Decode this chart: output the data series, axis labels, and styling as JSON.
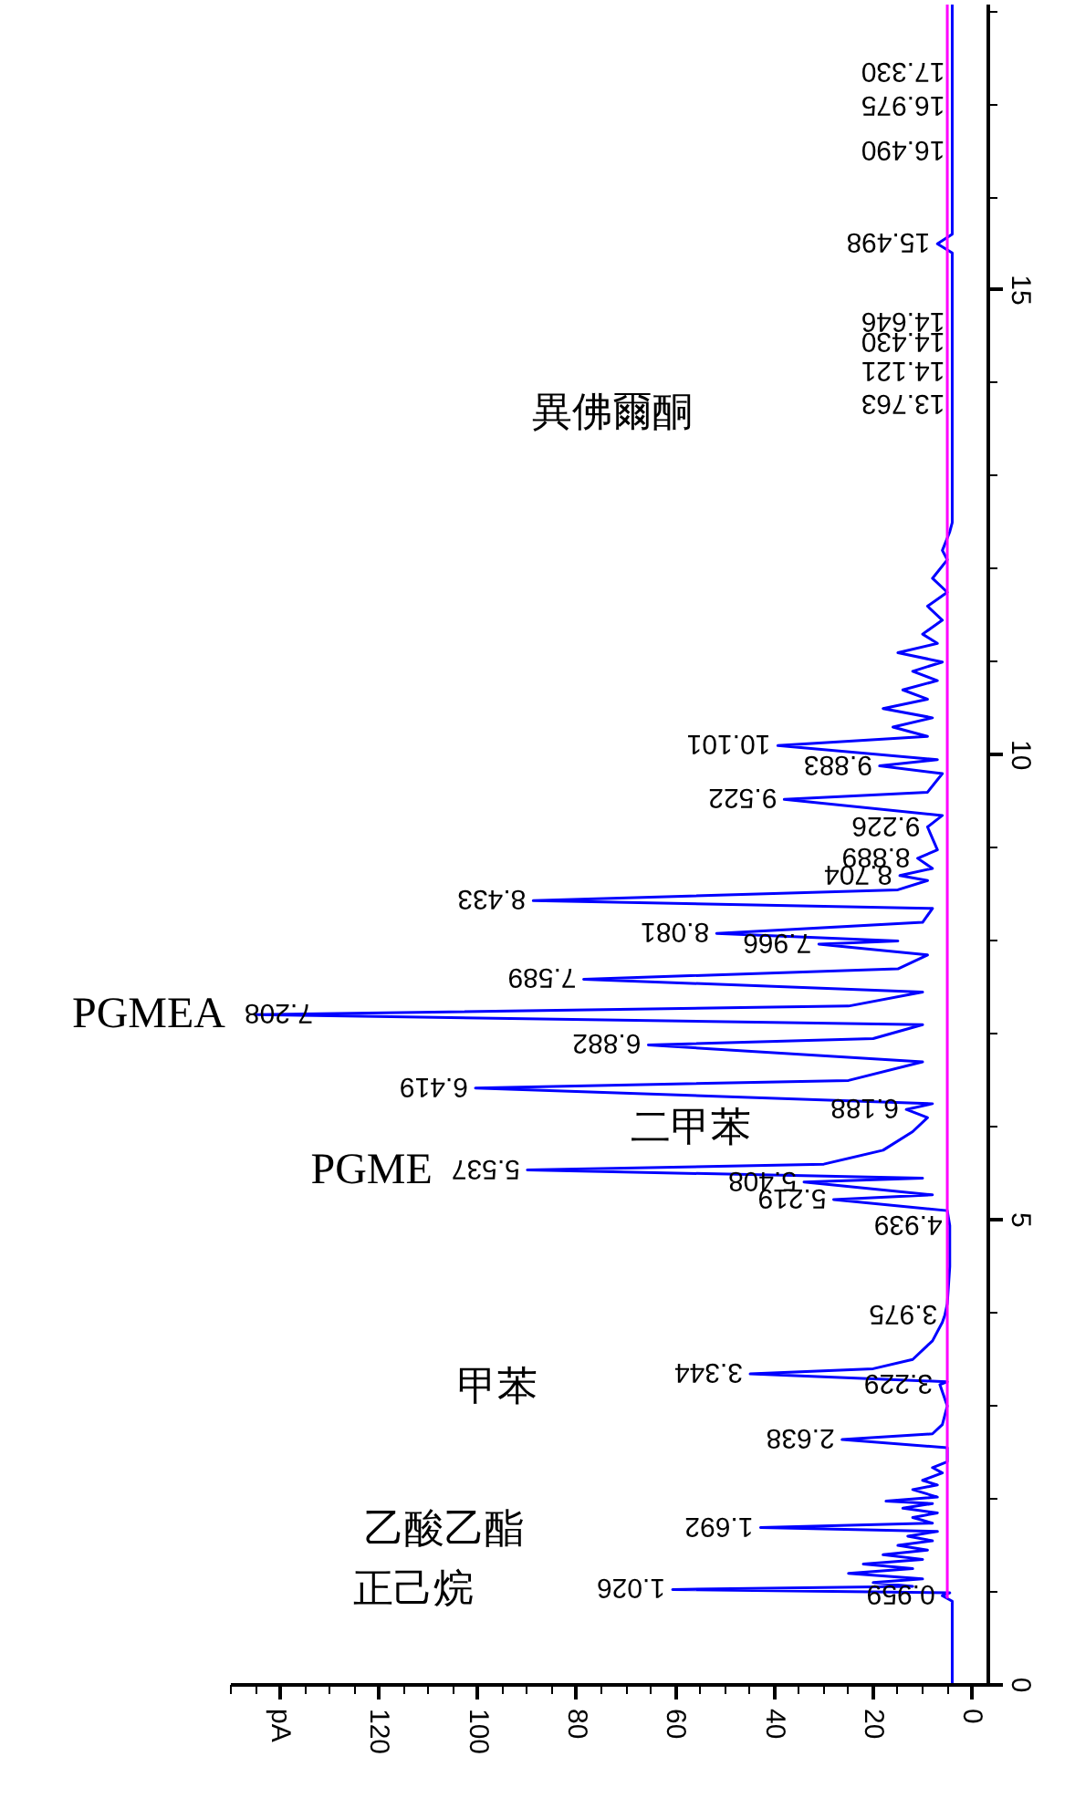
{
  "chart_data": {
    "type": "line",
    "orientation": "horizontal",
    "grid": false,
    "xlim": [
      150,
      -3.3
    ],
    "xticks": [
      0,
      20,
      40,
      60,
      80,
      100,
      120,
      {
        "value": 140,
        "label": "pA"
      }
    ],
    "ylim": [
      0,
      18.07
    ],
    "yticks": [
      0,
      5,
      10,
      15
    ],
    "series": [
      {
        "color": "#0000ff",
        "x": [
          0,
          0.9,
          0.959,
          0.99,
          1.026,
          1.06,
          1.1,
          1.14,
          1.2,
          1.25,
          1.3,
          1.35,
          1.4,
          1.45,
          1.5,
          1.55,
          1.6,
          1.65,
          1.692,
          1.74,
          1.8,
          1.85,
          1.9,
          1.95,
          1.976,
          2.02,
          2.1,
          2.15,
          2.2,
          2.28,
          2.337,
          2.4,
          2.55,
          2.638,
          2.7,
          2.8,
          3.0,
          3.229,
          3.26,
          3.344,
          3.4,
          3.5,
          3.7,
          3.9,
          3.975,
          4.1,
          4.5,
          4.939,
          5.1,
          5.219,
          5.27,
          5.408,
          5.45,
          5.537,
          5.6,
          5.75,
          5.95,
          6.1,
          6.188,
          6.25,
          6.419,
          6.5,
          6.7,
          6.882,
          6.95,
          7.1,
          7.208,
          7.3,
          7.45,
          7.589,
          7.7,
          7.85,
          7.966,
          8.0,
          8.081,
          8.2,
          8.35,
          8.433,
          8.55,
          8.65,
          8.704,
          8.78,
          8.889,
          8.98,
          9.226,
          9.35,
          9.522,
          9.6,
          9.8,
          9.883,
          9.95,
          10.101,
          10.2,
          10.3,
          10.4,
          10.5,
          10.6,
          10.7,
          10.8,
          10.9,
          11.0,
          11.1,
          11.2,
          11.3,
          11.45,
          11.6,
          11.75,
          11.9,
          12.1,
          12.2,
          12.4,
          12.5,
          13.763,
          14.121,
          14.43,
          14.646,
          15.4,
          15.498,
          15.6,
          16.49,
          16.975,
          17.33,
          18.07
        ],
        "values": [
          4,
          4,
          6,
          4.5,
          60.6,
          12,
          20,
          10,
          25,
          12,
          22,
          10,
          18,
          9,
          15,
          8,
          13,
          7,
          42.8,
          8,
          12,
          7,
          14,
          8,
          17.4,
          7,
          12,
          7,
          10,
          6,
          8,
          5,
          5,
          26.3,
          8,
          6,
          5,
          6.5,
          5,
          44.9,
          20,
          12,
          8,
          6,
          5.5,
          5,
          4.5,
          4.5,
          5,
          28,
          8,
          34,
          10,
          90,
          30,
          18,
          12,
          9,
          13.3,
          8,
          100.5,
          25,
          10,
          65.5,
          20,
          10,
          145,
          25,
          10,
          78.6,
          15,
          9,
          31,
          15,
          51.7,
          10,
          8,
          88.8,
          15,
          9,
          14.6,
          8,
          11,
          7,
          9,
          6,
          38,
          9,
          6,
          18.7,
          7,
          39.3,
          9,
          16,
          8,
          18,
          9,
          14,
          7,
          12,
          6,
          15,
          7,
          10,
          6,
          9,
          5,
          8,
          5,
          6,
          4.5,
          4,
          4,
          4,
          4,
          4,
          4,
          7,
          4,
          4,
          4,
          4,
          4
        ]
      },
      {
        "color": "#ff00ff",
        "x": [
          0.93,
          18.07
        ],
        "values": [
          5,
          5
        ]
      }
    ],
    "annotations": [
      {
        "text": "0.959",
        "x": 6,
        "y": 0.959
      },
      {
        "text": "1.026",
        "x": 60.6,
        "y": 1.026
      },
      {
        "text": "1.692",
        "x": 42.8,
        "y": 1.692
      },
      {
        "text": "2.638",
        "x": 26.3,
        "y": 2.638
      },
      {
        "text": "3.229",
        "x": 6.5,
        "y": 3.229
      },
      {
        "text": "3.344",
        "x": 44.9,
        "y": 3.344
      },
      {
        "text": "3.975",
        "x": 5.5,
        "y": 3.975
      },
      {
        "text": "4.939",
        "x": 4.5,
        "y": 4.939
      },
      {
        "text": "5.219",
        "x": 28,
        "y": 5.219
      },
      {
        "text": "5.408",
        "x": 34,
        "y": 5.408
      },
      {
        "text": "5.537",
        "x": 90,
        "y": 5.537
      },
      {
        "text": "6.188",
        "x": 13.3,
        "y": 6.188
      },
      {
        "text": "6.419",
        "x": 100.5,
        "y": 6.419
      },
      {
        "text": "6.882",
        "x": 65.5,
        "y": 6.882
      },
      {
        "text": "7.208",
        "x": 145,
        "y": 7.208
      },
      {
        "text": "7.589",
        "x": 78.6,
        "y": 7.589
      },
      {
        "text": "7.966",
        "x": 31,
        "y": 7.966
      },
      {
        "text": "8.081",
        "x": 51.7,
        "y": 8.081
      },
      {
        "text": "8.433",
        "x": 88.8,
        "y": 8.433
      },
      {
        "text": "8.704",
        "x": 14.6,
        "y": 8.704
      },
      {
        "text": "8.889",
        "x": 11,
        "y": 8.889
      },
      {
        "text": "9.226",
        "x": 9,
        "y": 9.226
      },
      {
        "text": "9.522",
        "x": 38,
        "y": 9.522
      },
      {
        "text": "9.883",
        "x": 18.7,
        "y": 9.883
      },
      {
        "text": "10.101",
        "x": 39.3,
        "y": 10.101
      },
      {
        "text": "13.763",
        "x": 4,
        "y": 13.763
      },
      {
        "text": "14.121",
        "x": 4,
        "y": 14.121
      },
      {
        "text": "14.430",
        "x": 4,
        "y": 14.43
      },
      {
        "text": "14.646",
        "x": 4,
        "y": 14.646
      },
      {
        "text": "15.498",
        "x": 7,
        "y": 15.498
      },
      {
        "text": "16.490",
        "x": 4,
        "y": 16.49
      },
      {
        "text": "16.975",
        "x": 4,
        "y": 16.975
      },
      {
        "text": "17.330",
        "x": 4,
        "y": 17.33
      },
      {
        "text": "PGMEA",
        "x": 145,
        "y": 7.208
      },
      {
        "text": "PGME",
        "x": 90,
        "y": 5.537
      },
      "二甲苯",
      "甲苯",
      "乙酸乙酯",
      "正己烷",
      "異佛爾酮"
    ]
  }
}
